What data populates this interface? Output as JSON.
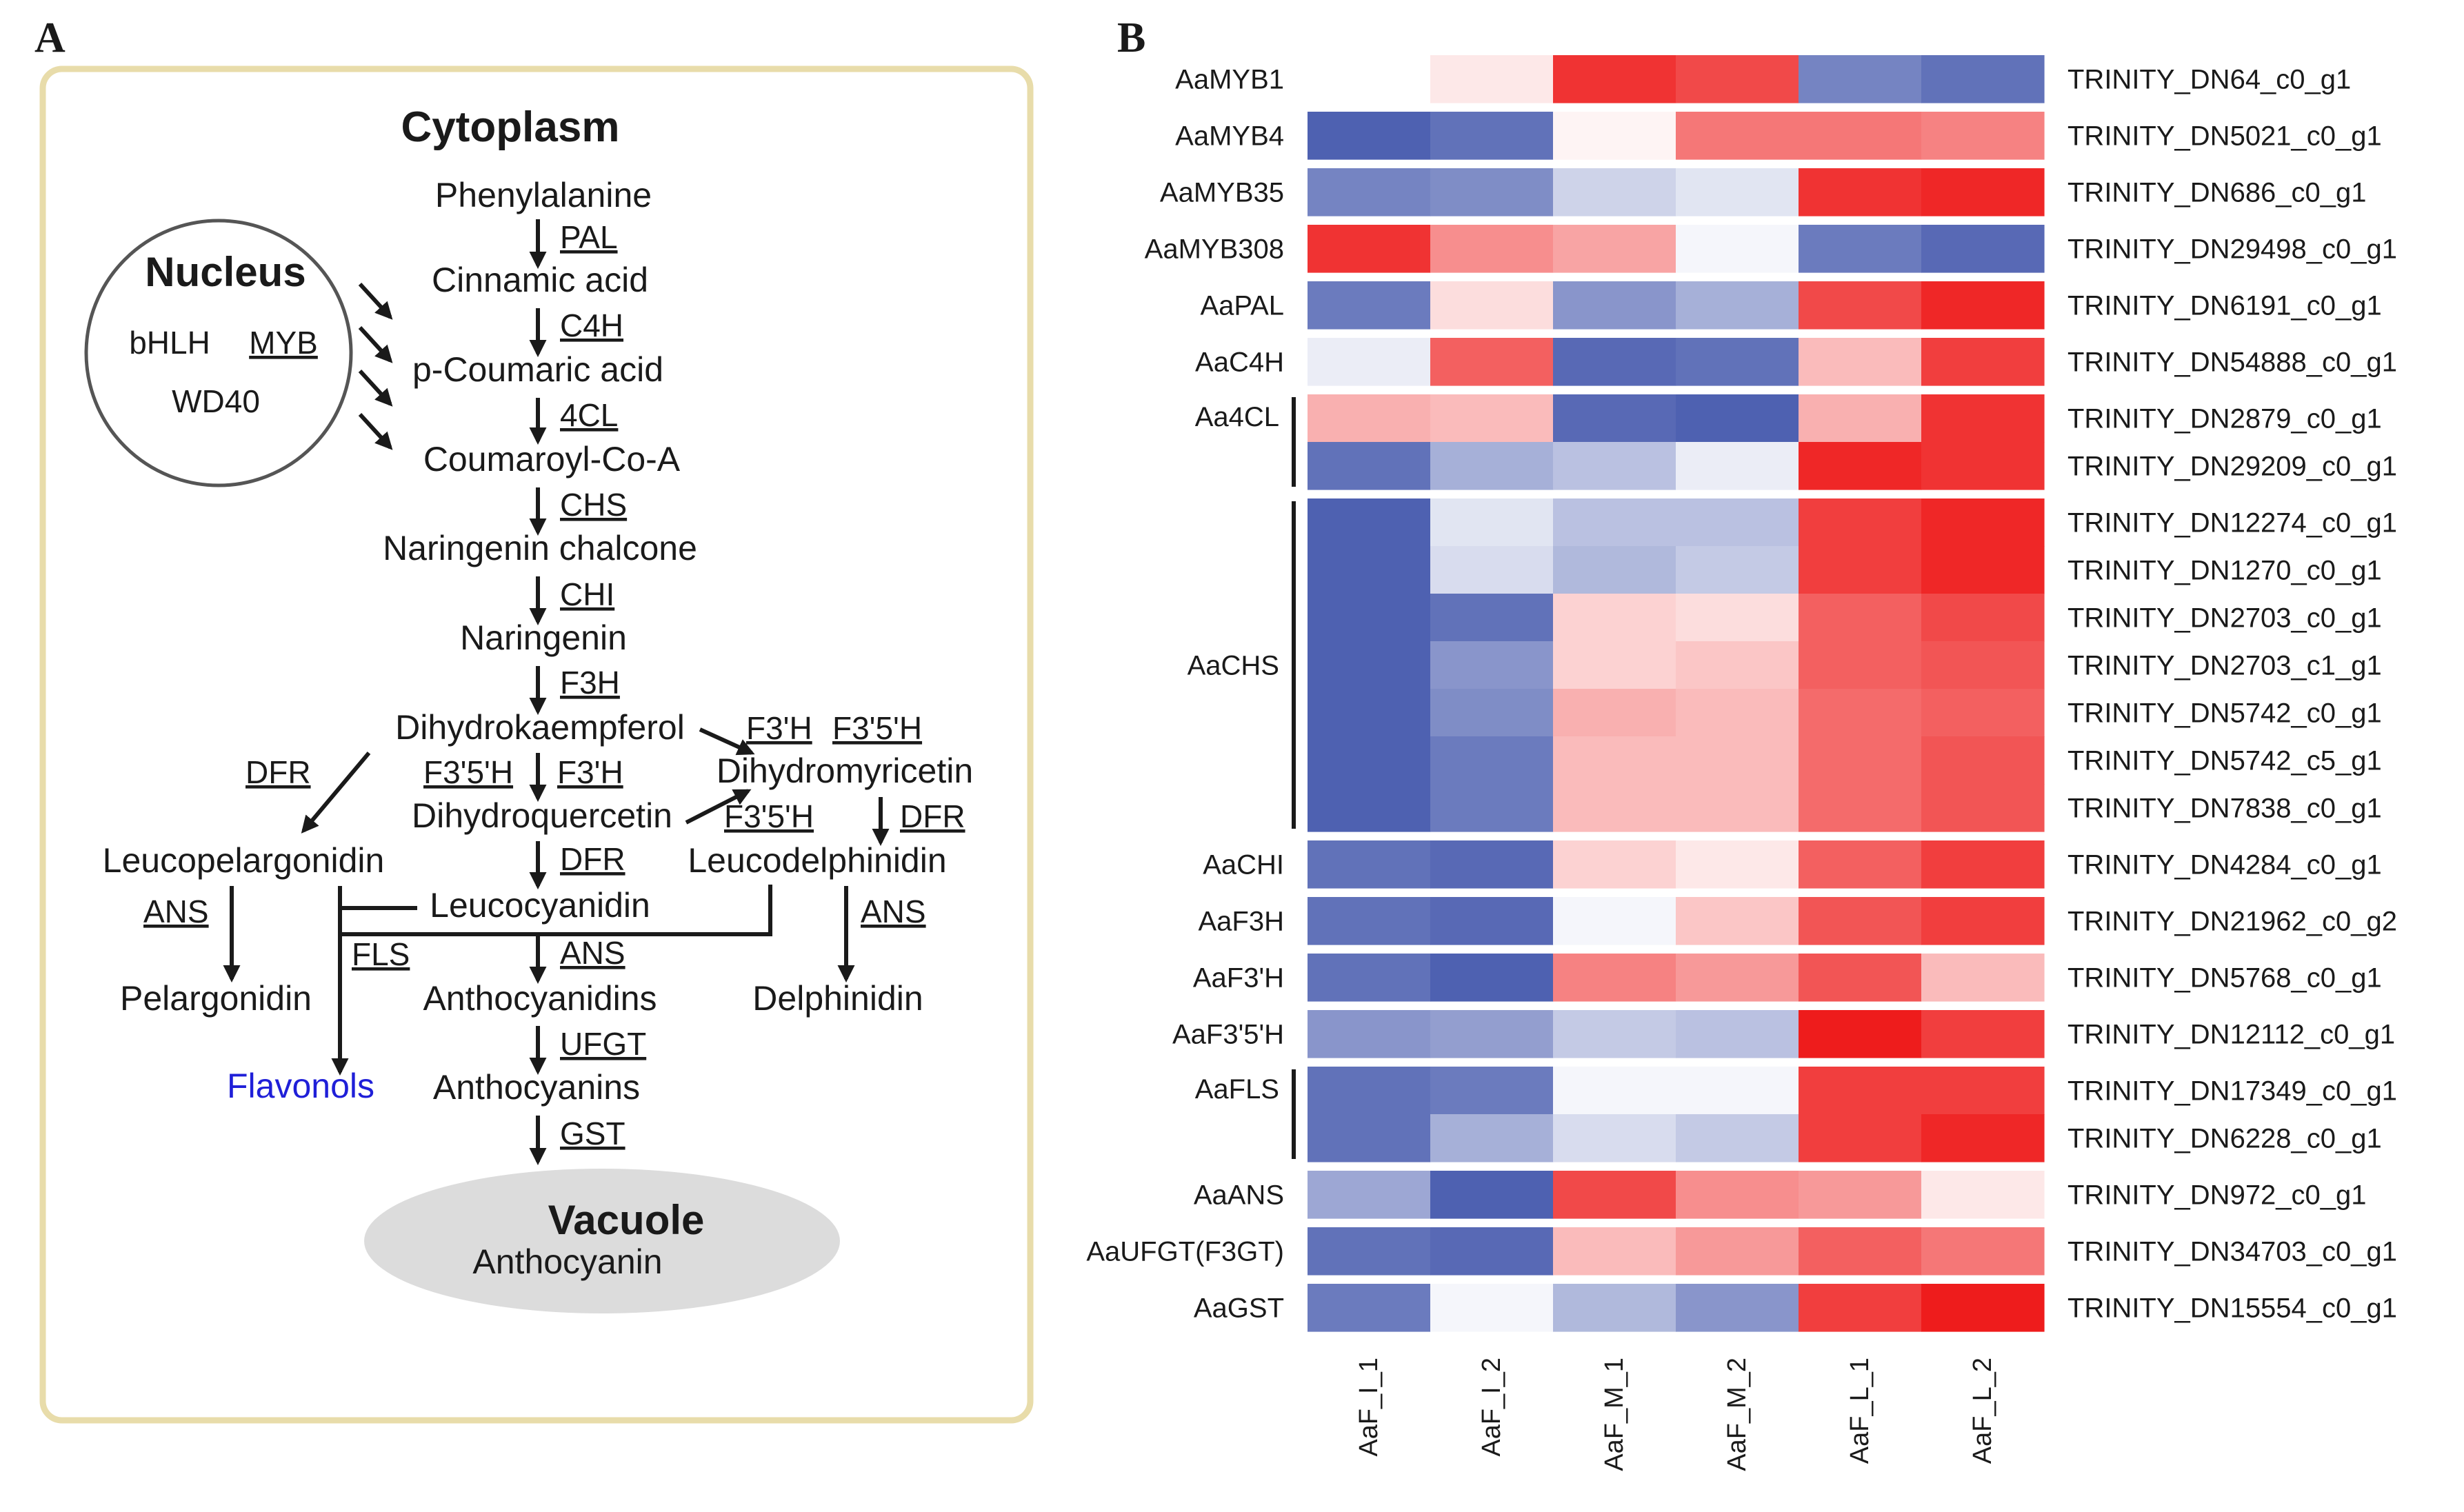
{
  "panel_a": {
    "letter": "A",
    "compartment_title": "Cytoplasm",
    "nucleus": {
      "title": "Nucleus",
      "tfs": [
        "bHLH",
        "MYB",
        "WD40"
      ]
    },
    "main_chain": [
      "Phenylalanine",
      "Cinnamic acid",
      "p-Coumaric acid",
      "Coumaroyl-Co-A",
      "Naringenin chalcone",
      "Naringenin",
      "Dihydrokaempferol"
    ],
    "main_enzymes": [
      "PAL",
      "C4H",
      "4CL",
      "CHS",
      "CHI",
      "F3H"
    ],
    "dihydroquercetin": "Dihydroquercetin",
    "dihydromyricetin": "Dihydromyricetin",
    "leucopelargonidin": "Leucopelargonidin",
    "leucocyanidin": "Leucocyanidin",
    "leucodelphinidin": "Leucodelphinidin",
    "pelargonidin": "Pelargonidin",
    "anthocyanidins": "Anthocyanidins",
    "delphinidin": "Delphinidin",
    "flavonols": "Flavonols",
    "anthocyanins": "Anthocyanins",
    "enz_f3h_prime_top": "F3'H",
    "enz_f35h_top": "F3'5'H",
    "enz_f35h_mid": "F3'5'H",
    "enz_f3h_prime_mid": "F3'H",
    "enz_dfr_left": "DFR",
    "enz_f35h_right": "F3'5'H",
    "enz_dfr_right": "DFR",
    "enz_dfr_center": "DFR",
    "enz_ans_left": "ANS",
    "enz_ans_center": "ANS",
    "enz_ans_right": "ANS",
    "enz_fls": "FLS",
    "enz_ufgt": "UFGT",
    "enz_gst": "GST",
    "vacuole": {
      "title": "Vacuole",
      "content": "Anthocyanin"
    },
    "colors": {
      "box_border": "#e8dcaa",
      "vacuole_fill": "#dcdcdc",
      "flavonols": "#1f1fd8",
      "nucleus_stroke": "#555555"
    }
  },
  "panel_b": {
    "letter": "B",
    "chart_data": {
      "type": "heatmap",
      "columns": [
        "AaF_I_1",
        "AaF_I_2",
        "AaF_M_1",
        "AaF_M_2",
        "AaF_L_1",
        "AaF_L_2"
      ],
      "scale": "expression z-score (estimated)",
      "colormap": {
        "low": "#3a4fa8",
        "mid": "#ffffff",
        "high": "#ee1c1c"
      },
      "groups": [
        {
          "gene": "AaMYB1",
          "rows": [
            {
              "id": "TRINITY_DN64_c0_g1",
              "values": [
                0.0,
                0.1,
                0.9,
                0.8,
                -0.7,
                -0.8
              ]
            }
          ]
        },
        {
          "gene": "AaMYB4",
          "rows": [
            {
              "id": "TRINITY_DN5021_c0_g1",
              "values": [
                -0.9,
                -0.8,
                0.05,
                0.6,
                0.6,
                0.55
              ]
            }
          ]
        },
        {
          "gene": "AaMYB35",
          "rows": [
            {
              "id": "TRINITY_DN686_c0_g1",
              "values": [
                -0.7,
                -0.65,
                -0.25,
                -0.15,
                0.9,
                0.95
              ]
            }
          ]
        },
        {
          "gene": "AaMYB308",
          "rows": [
            {
              "id": "TRINITY_DN29498_c0_g1",
              "values": [
                0.9,
                0.5,
                0.4,
                -0.05,
                -0.75,
                -0.85
              ]
            }
          ]
        },
        {
          "gene": "AaPAL",
          "rows": [
            {
              "id": "TRINITY_DN6191_c0_g1",
              "values": [
                -0.75,
                0.15,
                -0.6,
                -0.45,
                0.8,
                0.95
              ]
            }
          ]
        },
        {
          "gene": "AaC4H",
          "rows": [
            {
              "id": "TRINITY_DN54888_c0_g1",
              "values": [
                -0.1,
                0.7,
                -0.85,
                -0.8,
                0.3,
                0.85
              ]
            }
          ]
        },
        {
          "gene": "Aa4CL",
          "rows": [
            {
              "id": "TRINITY_DN2879_c0_g1",
              "values": [
                0.35,
                0.3,
                -0.85,
                -0.9,
                0.35,
                0.9
              ]
            },
            {
              "id": "TRINITY_DN29209_c0_g1",
              "values": [
                -0.8,
                -0.45,
                -0.35,
                -0.1,
                0.95,
                0.9
              ]
            }
          ]
        },
        {
          "gene": "AaCHS",
          "rows": [
            {
              "id": "TRINITY_DN12274_c0_g1",
              "values": [
                -0.9,
                -0.15,
                -0.35,
                -0.35,
                0.85,
                0.95
              ]
            },
            {
              "id": "TRINITY_DN1270_c0_g1",
              "values": [
                -0.9,
                -0.2,
                -0.4,
                -0.3,
                0.85,
                0.95
              ]
            },
            {
              "id": "TRINITY_DN2703_c0_g1",
              "values": [
                -0.9,
                -0.8,
                0.2,
                0.15,
                0.7,
                0.8
              ]
            },
            {
              "id": "TRINITY_DN2703_c1_g1",
              "values": [
                -0.9,
                -0.6,
                0.2,
                0.25,
                0.7,
                0.75
              ]
            },
            {
              "id": "TRINITY_DN5742_c0_g1",
              "values": [
                -0.9,
                -0.65,
                0.35,
                0.3,
                0.65,
                0.7
              ]
            },
            {
              "id": "TRINITY_DN5742_c5_g1",
              "values": [
                -0.9,
                -0.75,
                0.3,
                0.3,
                0.65,
                0.75
              ]
            },
            {
              "id": "TRINITY_DN7838_c0_g1",
              "values": [
                -0.9,
                -0.75,
                0.3,
                0.3,
                0.65,
                0.75
              ]
            }
          ]
        },
        {
          "gene": "AaCHI",
          "rows": [
            {
              "id": "TRINITY_DN4284_c0_g1",
              "values": [
                -0.8,
                -0.85,
                0.2,
                0.1,
                0.7,
                0.85
              ]
            }
          ]
        },
        {
          "gene": "AaF3H",
          "rows": [
            {
              "id": "TRINITY_DN21962_c0_g2",
              "values": [
                -0.8,
                -0.85,
                -0.05,
                0.25,
                0.75,
                0.85
              ]
            }
          ]
        },
        {
          "gene": "AaF3'H",
          "rows": [
            {
              "id": "TRINITY_DN5768_c0_g1",
              "values": [
                -0.8,
                -0.9,
                0.55,
                0.45,
                0.75,
                0.3
              ]
            }
          ]
        },
        {
          "gene": "AaF3'5'H",
          "rows": [
            {
              "id": "TRINITY_DN12112_c0_g1",
              "values": [
                -0.6,
                -0.55,
                -0.3,
                -0.35,
                1.0,
                0.85
              ]
            }
          ]
        },
        {
          "gene": "AaFLS",
          "rows": [
            {
              "id": "TRINITY_DN17349_c0_g1",
              "values": [
                -0.8,
                -0.75,
                -0.05,
                -0.05,
                0.85,
                0.85
              ]
            },
            {
              "id": "TRINITY_DN6228_c0_g1",
              "values": [
                -0.8,
                -0.45,
                -0.2,
                -0.3,
                0.85,
                0.95
              ]
            }
          ]
        },
        {
          "gene": "AaANS",
          "rows": [
            {
              "id": "TRINITY_DN972_c0_g1",
              "values": [
                -0.5,
                -0.9,
                0.8,
                0.5,
                0.45,
                0.1
              ]
            }
          ]
        },
        {
          "gene": "AaUFGT(F3GT)",
          "rows": [
            {
              "id": "TRINITY_DN34703_c0_g1",
              "values": [
                -0.8,
                -0.85,
                0.3,
                0.45,
                0.7,
                0.6
              ]
            }
          ]
        },
        {
          "gene": "AaGST",
          "rows": [
            {
              "id": "TRINITY_DN15554_c0_g1",
              "values": [
                -0.75,
                -0.05,
                -0.4,
                -0.6,
                0.85,
                1.0
              ]
            }
          ]
        }
      ]
    }
  }
}
